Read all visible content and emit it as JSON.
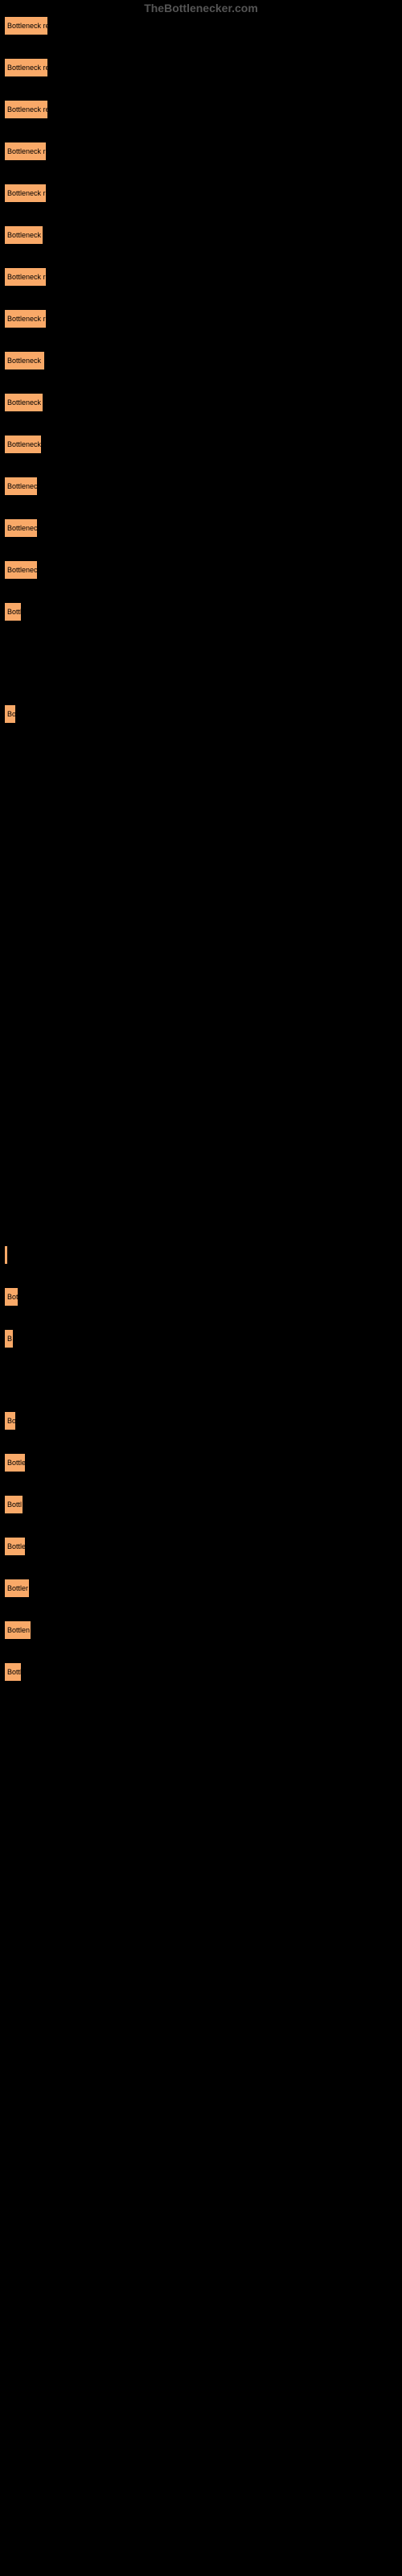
{
  "watermark": "TheBottlenecker.com",
  "bar_color": "#f9a968",
  "bar_border": "#000000",
  "label_prefix": "Bottleneck",
  "bars": [
    {
      "width": 55,
      "label": "Bottleneck re",
      "spacer_after": 0
    },
    {
      "width": 55,
      "label": "Bottleneck re",
      "spacer_after": 0
    },
    {
      "width": 55,
      "label": "Bottleneck re",
      "spacer_after": 0
    },
    {
      "width": 53,
      "label": "Bottleneck r",
      "spacer_after": 0
    },
    {
      "width": 53,
      "label": "Bottleneck r",
      "spacer_after": 0
    },
    {
      "width": 49,
      "label": "Bottleneck",
      "spacer_after": 0
    },
    {
      "width": 53,
      "label": "Bottleneck r",
      "spacer_after": 0
    },
    {
      "width": 53,
      "label": "Bottleneck r",
      "spacer_after": 0
    },
    {
      "width": 51,
      "label": "Bottleneck ",
      "spacer_after": 0
    },
    {
      "width": 49,
      "label": "Bottleneck",
      "spacer_after": 0
    },
    {
      "width": 47,
      "label": "Bottleneck",
      "spacer_after": 0
    },
    {
      "width": 42,
      "label": "Bottlenec",
      "spacer_after": 0
    },
    {
      "width": 42,
      "label": "Bottlenec",
      "spacer_after": 0
    },
    {
      "width": 42,
      "label": "Bottlenec",
      "spacer_after": 0
    },
    {
      "width": 22,
      "label": "Bottl",
      "spacer_after": 75
    },
    {
      "width": 15,
      "label": "Bo",
      "spacer_after": 620
    },
    {
      "width": 5,
      "label": "",
      "spacer_after": 0
    },
    {
      "width": 18,
      "label": "Bot",
      "spacer_after": 0
    },
    {
      "width": 12,
      "label": "B",
      "spacer_after": 50
    },
    {
      "width": 15,
      "label": "Bo",
      "spacer_after": 0
    },
    {
      "width": 27,
      "label": "Bottle",
      "spacer_after": 0
    },
    {
      "width": 24,
      "label": "Bottl",
      "spacer_after": 0
    },
    {
      "width": 27,
      "label": "Bottle",
      "spacer_after": 0
    },
    {
      "width": 32,
      "label": "Bottler",
      "spacer_after": 0
    },
    {
      "width": 34,
      "label": "Bottlen",
      "spacer_after": 0
    },
    {
      "width": 22,
      "label": "Bottl",
      "spacer_after": 0
    }
  ]
}
